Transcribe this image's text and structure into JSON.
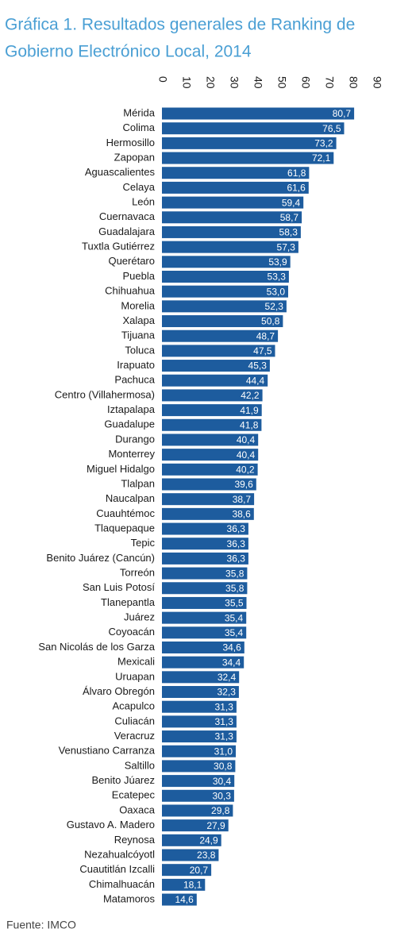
{
  "chart_data": {
    "type": "hbar",
    "title": [
      "Gráfica 1. Resultados generales de Ranking de",
      "Gobierno Electrónico Local, 2014"
    ],
    "source": "Fuente: IMCO",
    "color": "#1d5c9e",
    "xlim": [
      0,
      90
    ],
    "xticks": [
      0,
      10,
      20,
      30,
      40,
      50,
      60,
      70,
      80,
      90
    ],
    "categories": [
      "Mérida",
      "Colima",
      "Hermosillo",
      "Zapopan",
      "Aguascalientes",
      "Celaya",
      "León",
      "Cuernavaca",
      "Guadalajara",
      "Tuxtla Gutiérrez",
      "Querétaro",
      "Puebla",
      "Chihuahua",
      "Morelia",
      "Xalapa",
      "Tijuana",
      "Toluca",
      "Irapuato",
      "Pachuca",
      "Centro (Villahermosa)",
      "Iztapalapa",
      "Guadalupe",
      "Durango",
      "Monterrey",
      "Miguel Hidalgo",
      "Tlalpan",
      "Naucalpan",
      "Cuauhtémoc",
      "Tlaquepaque",
      "Tepic",
      "Benito Juárez (Cancún)",
      "Torreón",
      "San Luis Potosí",
      "Tlanepantla",
      "Juárez",
      "Coyoacán",
      "San Nicolás de los Garza",
      "Mexicali",
      "Uruapan",
      "Álvaro Obregón",
      "Acapulco",
      "Culiacán",
      "Veracruz",
      "Venustiano Carranza",
      "Saltillo",
      "Benito Júarez",
      "Ecatepec",
      "Oaxaca",
      "Gustavo A. Madero",
      "Reynosa",
      "Nezahualcóyotl",
      "Cuautitlán Izcalli",
      "Chimalhuacán",
      "Matamoros"
    ],
    "values": [
      80.7,
      76.5,
      73.2,
      72.1,
      61.8,
      61.6,
      59.4,
      58.7,
      58.3,
      57.3,
      53.9,
      53.3,
      53.0,
      52.3,
      50.8,
      48.7,
      47.5,
      45.3,
      44.4,
      42.2,
      41.9,
      41.8,
      40.4,
      40.4,
      40.2,
      39.6,
      38.7,
      38.6,
      36.3,
      36.3,
      36.3,
      35.8,
      35.8,
      35.5,
      35.4,
      35.4,
      34.6,
      34.4,
      32.4,
      32.3,
      31.3,
      31.3,
      31.3,
      31.0,
      30.8,
      30.4,
      30.3,
      29.8,
      27.9,
      24.9,
      23.8,
      20.7,
      18.1,
      14.6
    ],
    "value_labels": [
      "80,7",
      "76,5",
      "73,2",
      "72,1",
      "61,8",
      "61,6",
      "59,4",
      "58,7",
      "58,3",
      "57,3",
      "53,9",
      "53,3",
      "53,0",
      "52,3",
      "50,8",
      "48,7",
      "47,5",
      "45,3",
      "44,4",
      "42,2",
      "41,9",
      "41,8",
      "40,4",
      "40,4",
      "40,2",
      "39,6",
      "38,7",
      "38,6",
      "36,3",
      "36,3",
      "36,3",
      "35,8",
      "35,8",
      "35,5",
      "35,4",
      "35,4",
      "34,6",
      "34,4",
      "32,4",
      "32,3",
      "31,3",
      "31,3",
      "31,3",
      "31,0",
      "30,8",
      "30,4",
      "30,3",
      "29,8",
      "27,9",
      "24,9",
      "23,8",
      "20,7",
      "18,1",
      "14,6"
    ]
  }
}
